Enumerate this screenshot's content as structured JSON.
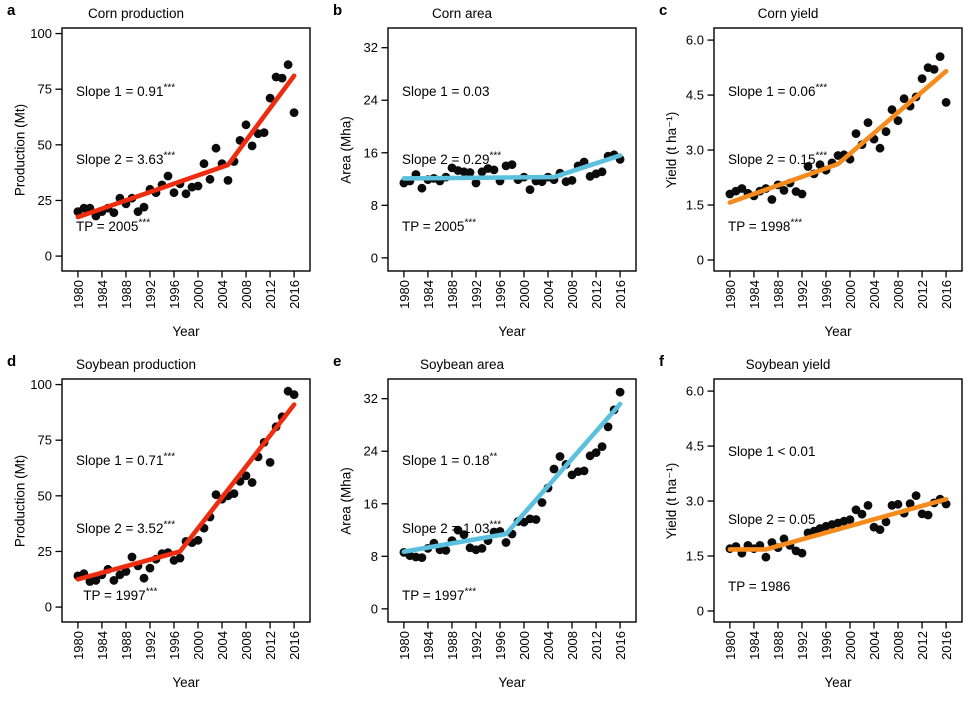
{
  "figure": {
    "background": "#ffffff",
    "frame_color": "#000000",
    "point_color": "#0b0b0b",
    "trend_red": "#ee2c0f",
    "trend_blue": "#5bc0dd",
    "trend_orange": "#f68b1d"
  },
  "chart_data": [
    {
      "type": "scatter",
      "letter": "a",
      "title": "Corn production",
      "xlabel": "Year",
      "ylabel": "Production (Mt)",
      "x_start": 1980,
      "x_step": 1,
      "x_ticks": [
        1980,
        1984,
        1988,
        1992,
        1996,
        2000,
        2004,
        2008,
        2012,
        2016
      ],
      "x_range": [
        1977.35,
        2018.65
      ],
      "y_ticks": [
        0,
        25,
        50,
        75,
        100
      ],
      "y_tick_labels": [
        "0",
        "25",
        "50",
        "75",
        "100"
      ],
      "y_range": [
        -6.7,
        102.5
      ],
      "values": [
        20,
        21.5,
        21.5,
        18,
        20,
        21.5,
        19.5,
        26,
        23.5,
        26,
        20,
        22,
        30,
        28.5,
        32,
        36,
        28.5,
        32.5,
        28,
        31,
        31.5,
        41.5,
        34.5,
        48.5,
        41.5,
        34,
        42.5,
        52,
        59,
        49.5,
        55,
        55.5,
        71,
        80.5,
        80,
        86,
        64.5
      ],
      "trend": {
        "color": "#ee2c0f",
        "points": [
          [
            1980,
            17.5
          ],
          [
            2005,
            41
          ],
          [
            2016,
            81
          ]
        ]
      },
      "annotations": [
        {
          "text": "Slope 1 = 0.91",
          "stars": "***"
        },
        {
          "text": "Slope 2 = 3.63",
          "stars": "***"
        },
        {
          "text": "TP = 2005",
          "stars": "***"
        }
      ]
    },
    {
      "type": "scatter",
      "letter": "b",
      "title": "Corn area",
      "xlabel": "Year",
      "ylabel": "Area (Mha)",
      "x_start": 1980,
      "x_step": 1,
      "x_ticks": [
        1980,
        1984,
        1988,
        1992,
        1996,
        2000,
        2004,
        2008,
        2012,
        2016
      ],
      "x_range": [
        1977.35,
        2018.65
      ],
      "y_ticks": [
        0,
        8,
        16,
        24,
        32
      ],
      "y_tick_labels": [
        "0",
        "8",
        "16",
        "24",
        "32"
      ],
      "y_range": [
        -2.0,
        35.0
      ],
      "values": [
        11.4,
        11.7,
        12.7,
        10.6,
        11.9,
        12.1,
        11.7,
        12.3,
        13.7,
        13.3,
        13.1,
        13,
        11.4,
        13.1,
        13.6,
        13.4,
        11.7,
        14,
        14.2,
        11.9,
        12.3,
        10.4,
        11.7,
        11.6,
        12.3,
        11.9,
        12.9,
        11.6,
        11.8,
        14,
        14.6,
        12.4,
        12.8,
        13.1,
        15.5,
        15.7,
        15
      ],
      "trend": {
        "color": "#5bc0dd",
        "points": [
          [
            1980,
            12.1
          ],
          [
            2005,
            12.3
          ],
          [
            2016,
            15.6
          ]
        ]
      },
      "annotations": [
        {
          "text": "Slope 1 = 0.03",
          "stars": ""
        },
        {
          "text": "Slope 2 = 0.29",
          "stars": "***"
        },
        {
          "text": "TP = 2005",
          "stars": "***"
        }
      ]
    },
    {
      "type": "scatter",
      "letter": "c",
      "title": "Corn yield",
      "xlabel": "Year",
      "ylabel": "Yield (t ha⁻¹)",
      "x_start": 1980,
      "x_step": 1,
      "x_ticks": [
        1980,
        1984,
        1988,
        1992,
        1996,
        2000,
        2004,
        2008,
        2012,
        2016
      ],
      "x_range": [
        1977.35,
        2018.65
      ],
      "y_ticks": [
        0,
        1.5,
        3.0,
        4.5,
        6.0
      ],
      "y_tick_labels": [
        "0",
        "1.5",
        "3.0",
        "4.5",
        "6.0"
      ],
      "y_range": [
        -0.3,
        6.33
      ],
      "values": [
        1.8,
        1.88,
        1.95,
        1.82,
        1.75,
        1.88,
        1.95,
        1.65,
        2.05,
        1.9,
        2.1,
        1.87,
        1.8,
        2.55,
        2.35,
        2.6,
        2.45,
        2.65,
        2.85,
        2.87,
        2.75,
        3.45,
        3.15,
        3.75,
        3.3,
        3.05,
        3.5,
        4.1,
        3.8,
        4.4,
        4.2,
        4.45,
        4.95,
        5.25,
        5.2,
        5.55,
        4.3
      ],
      "trend": {
        "color": "#f68b1d",
        "points": [
          [
            1980,
            1.57
          ],
          [
            1998,
            2.62
          ],
          [
            2016,
            5.15
          ]
        ]
      },
      "annotations": [
        {
          "text": "Slope 1 = 0.06",
          "stars": "***"
        },
        {
          "text": "Slope 2 = 0.15",
          "stars": "***"
        },
        {
          "text": "TP = 1998",
          "stars": "***"
        }
      ]
    },
    {
      "type": "scatter",
      "letter": "d",
      "title": "Soybean production",
      "xlabel": "Year",
      "ylabel": "Production (Mt)",
      "x_start": 1980,
      "x_step": 1,
      "x_ticks": [
        1980,
        1984,
        1988,
        1992,
        1996,
        2000,
        2004,
        2008,
        2012,
        2016
      ],
      "x_range": [
        1977.35,
        2018.65
      ],
      "y_ticks": [
        0,
        25,
        50,
        75,
        100
      ],
      "y_tick_labels": [
        "0",
        "25",
        "50",
        "75",
        "100"
      ],
      "y_range": [
        -6.7,
        102.5
      ],
      "values": [
        14,
        15,
        11.5,
        12,
        14.5,
        17,
        12,
        14.5,
        16,
        22.5,
        18.5,
        13,
        17.5,
        21.5,
        24,
        24.5,
        21,
        22,
        29.5,
        29,
        30,
        35.5,
        40.5,
        50.5,
        48.5,
        50,
        51,
        56.5,
        59,
        56,
        67.5,
        74,
        65,
        81,
        85.5,
        97,
        95.5
      ],
      "trend": {
        "color": "#ee2c0f",
        "points": [
          [
            1980,
            12.5
          ],
          [
            1997,
            25
          ],
          [
            2016,
            91
          ]
        ]
      },
      "annotations": [
        {
          "text": "Slope 1 = 0.71",
          "stars": "***"
        },
        {
          "text": "Slope 2 = 3.52",
          "stars": "***"
        },
        {
          "text": "  TP = 1997",
          "stars": "***"
        }
      ]
    },
    {
      "type": "scatter",
      "letter": "e",
      "title": "Soybean area",
      "xlabel": "Year",
      "ylabel": "Area (Mha)",
      "x_start": 1980,
      "x_step": 1,
      "x_ticks": [
        1980,
        1984,
        1988,
        1992,
        1996,
        2000,
        2004,
        2008,
        2012,
        2016
      ],
      "x_range": [
        1977.35,
        2018.65
      ],
      "y_ticks": [
        0,
        8,
        16,
        24,
        32
      ],
      "y_tick_labels": [
        "0",
        "8",
        "16",
        "24",
        "32"
      ],
      "y_range": [
        -2.0,
        35.0
      ],
      "values": [
        8.6,
        8.1,
        7.9,
        7.8,
        9.2,
        10,
        9,
        8.9,
        10.4,
        12,
        11.3,
        9.3,
        9,
        9.2,
        10.4,
        11.7,
        11.8,
        10.1,
        11.4,
        13.3,
        13.2,
        13.7,
        13.6,
        16.2,
        18.4,
        21.3,
        23.2,
        22,
        20.4,
        20.9,
        21,
        23.3,
        23.8,
        24.7,
        27.7,
        30.3,
        33
      ],
      "trend": {
        "color": "#5bc0dd",
        "points": [
          [
            1980,
            8.7
          ],
          [
            1997,
            11.4
          ],
          [
            2016,
            31.2
          ]
        ]
      },
      "annotations": [
        {
          "text": "Slope 1 = 0.18",
          "stars": "**"
        },
        {
          "text": "Slope 2 = 1.03",
          "stars": "***"
        },
        {
          "text": "TP = 1997",
          "stars": "***"
        }
      ]
    },
    {
      "type": "scatter",
      "letter": "f",
      "title": "Soybean yield",
      "xlabel": "Year",
      "ylabel": "Yield (t ha⁻¹)",
      "x_start": 1980,
      "x_step": 1,
      "x_ticks": [
        1980,
        1984,
        1988,
        1992,
        1996,
        2000,
        2004,
        2008,
        2012,
        2016
      ],
      "x_range": [
        1977.35,
        2018.65
      ],
      "y_ticks": [
        0,
        1.5,
        3.0,
        4.5,
        6.0
      ],
      "y_tick_labels": [
        "0",
        "1.5",
        "3.0",
        "4.5",
        "6.0"
      ],
      "y_range": [
        -0.3,
        6.33
      ],
      "values": [
        1.7,
        1.76,
        1.58,
        1.79,
        1.7,
        1.79,
        1.47,
        1.87,
        1.73,
        1.97,
        1.79,
        1.64,
        1.58,
        2.13,
        2.18,
        2.25,
        2.31,
        2.36,
        2.4,
        2.45,
        2.49,
        2.76,
        2.64,
        2.88,
        2.29,
        2.22,
        2.43,
        2.88,
        2.91,
        2.67,
        2.93,
        3.15,
        2.65,
        2.62,
        2.95,
        3.05,
        2.92
      ],
      "trend": {
        "color": "#f68b1d",
        "points": [
          [
            1980,
            1.68
          ],
          [
            1986,
            1.68
          ],
          [
            2016,
            3.05
          ]
        ]
      },
      "annotations": [
        {
          "text": "Slope 1 < 0.01",
          "stars": ""
        },
        {
          "text": "Slope 2 = 0.05",
          "stars": ""
        },
        {
          "text": "TP = 1986",
          "stars": ""
        }
      ]
    }
  ]
}
